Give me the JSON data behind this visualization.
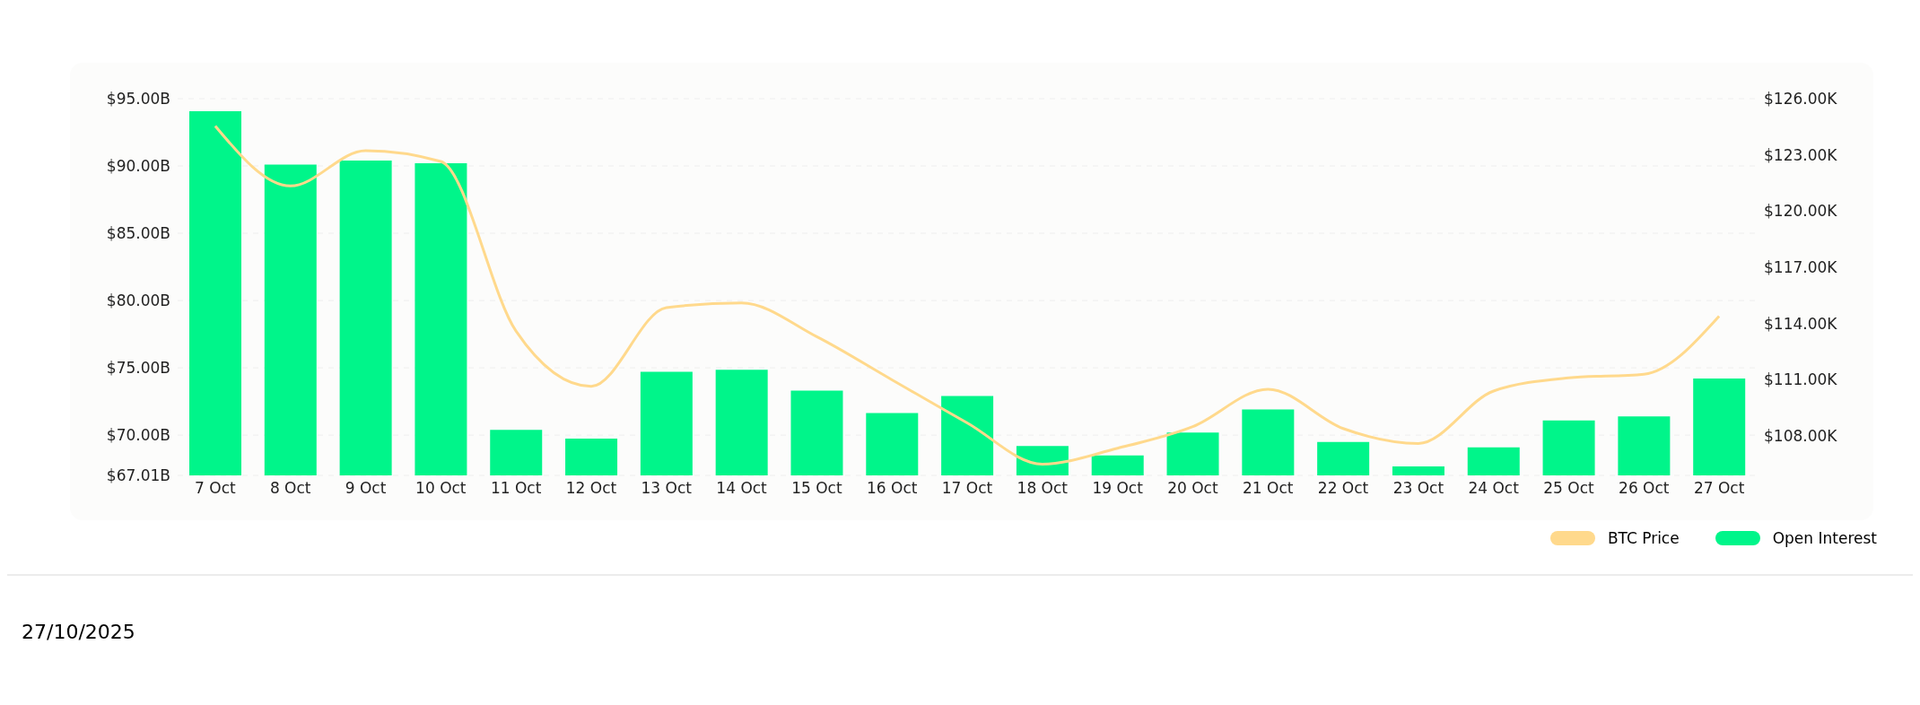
{
  "chart_data": {
    "type": "bar",
    "categories": [
      "7 Oct",
      "8 Oct",
      "9 Oct",
      "10 Oct",
      "11 Oct",
      "12 Oct",
      "13 Oct",
      "14 Oct",
      "15 Oct",
      "16 Oct",
      "17 Oct",
      "18 Oct",
      "19 Oct",
      "20 Oct",
      "21 Oct",
      "22 Oct",
      "23 Oct",
      "24 Oct",
      "25 Oct",
      "26 Oct",
      "27 Oct"
    ],
    "series": [
      {
        "name": "BTC Price",
        "type": "line",
        "axis": "y2",
        "color": "#ffd98c",
        "values": [
          124.54,
          121.34,
          123.23,
          122.65,
          113.6,
          110.65,
          114.85,
          115.1,
          113.3,
          111.0,
          108.7,
          106.5,
          107.35,
          108.5,
          110.5,
          108.4,
          107.6,
          110.4,
          111.1,
          111.3,
          114.4
        ]
      },
      {
        "name": "Open Interest",
        "color": "#00f58a",
        "values": [
          94.07,
          90.1,
          90.4,
          90.2,
          70.4,
          69.75,
          74.7,
          74.85,
          73.3,
          71.65,
          72.9,
          69.2,
          68.5,
          70.2,
          71.9,
          69.5,
          67.68,
          69.1,
          71.1,
          71.4,
          74.2
        ]
      }
    ],
    "ylim": [
      67.01,
      95
    ],
    "yticks": [
      {
        "value": 67.01,
        "label": "$67.01B"
      },
      {
        "value": 70,
        "label": "$70.00B"
      },
      {
        "value": 75,
        "label": "$75.00B"
      },
      {
        "value": 80,
        "label": "$80.00B"
      },
      {
        "value": 85,
        "label": "$85.00B"
      },
      {
        "value": 90,
        "label": "$90.00B"
      },
      {
        "value": 95,
        "label": "$95.00B"
      }
    ],
    "y2lim": [
      105.9,
      126
    ],
    "y2ticks": [
      {
        "value": 108,
        "label": "$108.00K"
      },
      {
        "value": 111,
        "label": "$111.00K"
      },
      {
        "value": 114,
        "label": "$114.00K"
      },
      {
        "value": 117,
        "label": "$117.00K"
      },
      {
        "value": 120,
        "label": "$120.00K"
      },
      {
        "value": 123,
        "label": "$123.00K"
      },
      {
        "value": 126,
        "label": "$126.00K"
      }
    ],
    "grid": "y",
    "legend": "bottom right",
    "marker": "none",
    "annotations": [
      "27/10/2025"
    ]
  }
}
